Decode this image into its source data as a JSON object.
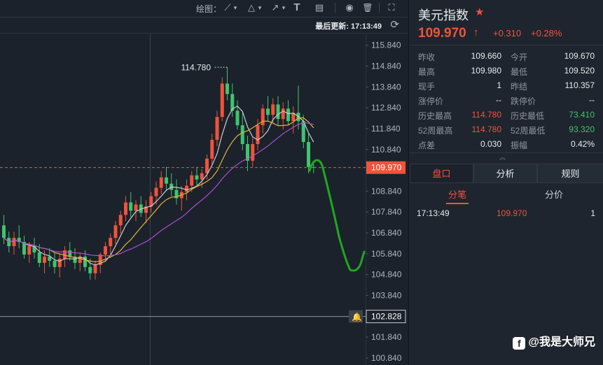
{
  "toolbar": {
    "draw_label": "绘图：",
    "tools": [
      {
        "icon": "line-tool-icon",
        "glyph": "⟋"
      },
      {
        "icon": "chevron-down-icon",
        "glyph": "▾"
      },
      {
        "icon": "triangle-tool-icon",
        "glyph": "△"
      },
      {
        "icon": "chevron-down-icon",
        "glyph": "▾"
      },
      {
        "icon": "arrow-tool-icon",
        "glyph": "↗"
      },
      {
        "icon": "chevron-down-icon",
        "glyph": "▾"
      },
      {
        "icon": "text-tool-icon",
        "glyph": "T"
      },
      {
        "icon": "fibonacci-tool-icon",
        "glyph": "▤"
      },
      {
        "icon": "eye-icon",
        "glyph": "◉"
      },
      {
        "icon": "trash-icon",
        "glyph": "🗑"
      },
      {
        "icon": "fullscreen-icon",
        "glyph": "⛶"
      }
    ],
    "last_update": "最后更新: 17:13:49",
    "refresh_icon": "refresh-icon"
  },
  "colors": {
    "up": "#f0533b",
    "down": "#3ec46d",
    "ma5": "#c9ced6",
    "ma10": "#e3b43c",
    "ma20": "#b04cd6",
    "price_line": "#f0533b",
    "annotation": "#1fa81f"
  },
  "chart_data": {
    "type": "candlestick",
    "y_ticks": [
      "115.840",
      "114.840",
      "113.840",
      "112.840",
      "111.840",
      "110.840",
      "109.840",
      "108.840",
      "107.840",
      "106.840",
      "105.840",
      "104.840",
      "103.840",
      "102.840",
      "101.840",
      "100.840"
    ],
    "ylim": [
      100.5,
      116.4
    ],
    "current_price": "109.970",
    "alert_price": "102.828",
    "max_label": "114.780",
    "max_value": 114.78,
    "ohlc": [
      [
        107.2,
        107.7,
        106.3,
        106.6
      ],
      [
        106.6,
        106.9,
        105.9,
        106.2
      ],
      [
        106.2,
        106.9,
        105.8,
        106.6
      ],
      [
        106.6,
        107.2,
        106.1,
        106.4
      ],
      [
        106.4,
        106.7,
        105.6,
        105.8
      ],
      [
        105.8,
        106.4,
        105.4,
        106.2
      ],
      [
        106.2,
        106.6,
        105.6,
        105.9
      ],
      [
        105.9,
        106.3,
        105.2,
        105.4
      ],
      [
        105.4,
        106.0,
        104.9,
        105.7
      ],
      [
        105.7,
        106.1,
        105.2,
        105.5
      ],
      [
        105.5,
        105.9,
        104.9,
        105.2
      ],
      [
        105.2,
        105.8,
        104.7,
        105.6
      ],
      [
        105.6,
        106.2,
        105.2,
        106.0
      ],
      [
        106.0,
        106.4,
        105.5,
        105.7
      ],
      [
        105.7,
        106.1,
        105.1,
        105.4
      ],
      [
        105.4,
        105.9,
        105.0,
        105.7
      ],
      [
        105.7,
        106.0,
        105.0,
        105.2
      ],
      [
        105.2,
        105.6,
        104.6,
        104.9
      ],
      [
        104.9,
        105.5,
        104.6,
        105.3
      ],
      [
        105.3,
        105.9,
        104.9,
        105.8
      ],
      [
        105.8,
        106.4,
        105.5,
        106.2
      ],
      [
        106.2,
        106.8,
        105.8,
        106.6
      ],
      [
        106.6,
        107.4,
        106.3,
        107.2
      ],
      [
        107.2,
        107.9,
        106.8,
        107.7
      ],
      [
        107.7,
        108.6,
        107.4,
        108.3
      ],
      [
        108.3,
        108.8,
        107.6,
        107.9
      ],
      [
        107.9,
        108.4,
        107.4,
        108.2
      ],
      [
        108.2,
        108.6,
        107.6,
        107.8
      ],
      [
        107.8,
        108.4,
        107.3,
        108.1
      ],
      [
        108.1,
        108.8,
        107.8,
        108.6
      ],
      [
        108.6,
        109.3,
        108.2,
        109.0
      ],
      [
        109.0,
        109.8,
        108.7,
        109.5
      ],
      [
        109.5,
        110.0,
        108.9,
        109.2
      ],
      [
        109.2,
        109.7,
        108.6,
        108.9
      ],
      [
        108.9,
        109.4,
        108.2,
        108.5
      ],
      [
        108.5,
        109.1,
        107.9,
        108.8
      ],
      [
        108.8,
        109.4,
        108.4,
        109.1
      ],
      [
        109.1,
        109.8,
        108.8,
        109.6
      ],
      [
        109.6,
        110.0,
        109.1,
        109.4
      ],
      [
        109.4,
        109.9,
        109.0,
        109.7
      ],
      [
        109.7,
        110.6,
        109.4,
        110.4
      ],
      [
        110.4,
        111.6,
        110.1,
        111.3
      ],
      [
        111.3,
        112.7,
        111.0,
        112.4
      ],
      [
        112.4,
        114.3,
        112.2,
        114.0
      ],
      [
        114.0,
        114.78,
        113.2,
        113.5
      ],
      [
        113.5,
        114.0,
        112.4,
        112.7
      ],
      [
        112.7,
        113.2,
        111.8,
        112.0
      ],
      [
        112.0,
        112.6,
        110.8,
        111.1
      ],
      [
        111.1,
        111.5,
        109.8,
        110.3
      ],
      [
        110.3,
        111.4,
        110.0,
        111.1
      ],
      [
        111.1,
        112.3,
        110.8,
        112.0
      ],
      [
        112.0,
        113.0,
        111.6,
        112.8
      ],
      [
        112.8,
        113.4,
        112.2,
        112.5
      ],
      [
        112.5,
        113.3,
        112.1,
        113.0
      ],
      [
        113.0,
        113.4,
        112.0,
        112.3
      ],
      [
        112.3,
        113.1,
        111.8,
        112.8
      ],
      [
        112.8,
        113.2,
        112.0,
        112.2
      ],
      [
        112.2,
        112.9,
        111.6,
        112.6
      ],
      [
        112.6,
        113.9,
        111.8,
        112.2
      ],
      [
        112.2,
        112.5,
        110.9,
        111.2
      ],
      [
        111.2,
        111.6,
        109.7,
        110.0
      ],
      [
        110.0,
        110.3,
        109.7,
        109.97
      ]
    ]
  },
  "panel": {
    "title": "美元指数",
    "star_icon": "star-icon",
    "price": "109.970",
    "arrow": "↑",
    "change": "+0.310",
    "change_pct": "+0.28%",
    "stats": [
      {
        "l1": "昨收",
        "v1": "109.660",
        "l2": "今开",
        "v2": "109.670"
      },
      {
        "l1": "最高",
        "v1": "109.980",
        "l2": "最低",
        "v2": "109.520"
      },
      {
        "l1": "现手",
        "v1": "1",
        "l2": "昨结",
        "v2": "110.357"
      },
      {
        "l1": "涨停价",
        "v1": "--",
        "l2": "跌停价",
        "v2": "--"
      },
      {
        "l1": "历史最高",
        "v1": "114.780",
        "l2": "历史最低",
        "v2": "73.410"
      },
      {
        "l1": "52周最高",
        "v1": "114.780",
        "l2": "52周最低",
        "v2": "93.320"
      },
      {
        "l1": "点差",
        "v1": "0.030",
        "l2": "振幅",
        "v2": "0.42%"
      }
    ],
    "collapse_glyph": "︽",
    "tabs": [
      "盘口",
      "分析",
      "规则"
    ],
    "subtabs": [
      "分笔",
      "分价"
    ],
    "trade": {
      "time": "17:13:49",
      "price": "109.970",
      "volume": "1"
    },
    "watermark": "@我是大师兄"
  }
}
